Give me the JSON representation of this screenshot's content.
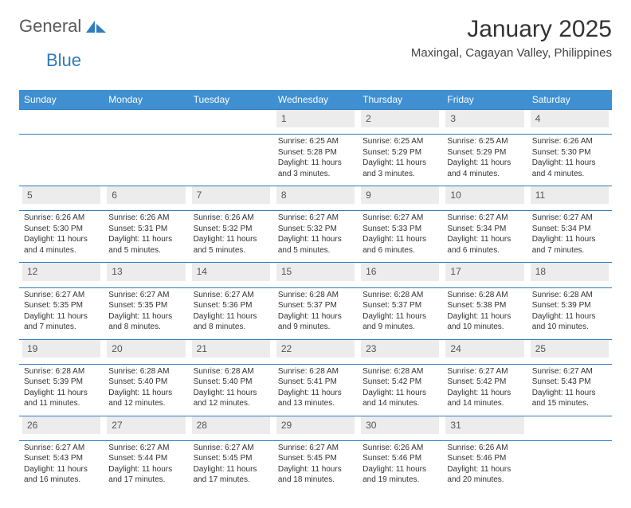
{
  "brand": {
    "word1": "General",
    "word2": "Blue"
  },
  "title": "January 2025",
  "location": "Maxingal, Cagayan Valley, Philippines",
  "colors": {
    "header_bg": "#3f8fd1",
    "border": "#2f7bbf",
    "daynum_bg": "#ececec",
    "text": "#333333",
    "logo_gray": "#5a5a5a",
    "logo_blue": "#2f7bbf"
  },
  "weekdays": [
    "Sunday",
    "Monday",
    "Tuesday",
    "Wednesday",
    "Thursday",
    "Friday",
    "Saturday"
  ],
  "weeks": [
    [
      null,
      null,
      null,
      {
        "n": "1",
        "sr": "Sunrise: 6:25 AM",
        "ss": "Sunset: 5:28 PM",
        "d1": "Daylight: 11 hours",
        "d2": "and 3 minutes."
      },
      {
        "n": "2",
        "sr": "Sunrise: 6:25 AM",
        "ss": "Sunset: 5:29 PM",
        "d1": "Daylight: 11 hours",
        "d2": "and 3 minutes."
      },
      {
        "n": "3",
        "sr": "Sunrise: 6:25 AM",
        "ss": "Sunset: 5:29 PM",
        "d1": "Daylight: 11 hours",
        "d2": "and 4 minutes."
      },
      {
        "n": "4",
        "sr": "Sunrise: 6:26 AM",
        "ss": "Sunset: 5:30 PM",
        "d1": "Daylight: 11 hours",
        "d2": "and 4 minutes."
      }
    ],
    [
      {
        "n": "5",
        "sr": "Sunrise: 6:26 AM",
        "ss": "Sunset: 5:30 PM",
        "d1": "Daylight: 11 hours",
        "d2": "and 4 minutes."
      },
      {
        "n": "6",
        "sr": "Sunrise: 6:26 AM",
        "ss": "Sunset: 5:31 PM",
        "d1": "Daylight: 11 hours",
        "d2": "and 5 minutes."
      },
      {
        "n": "7",
        "sr": "Sunrise: 6:26 AM",
        "ss": "Sunset: 5:32 PM",
        "d1": "Daylight: 11 hours",
        "d2": "and 5 minutes."
      },
      {
        "n": "8",
        "sr": "Sunrise: 6:27 AM",
        "ss": "Sunset: 5:32 PM",
        "d1": "Daylight: 11 hours",
        "d2": "and 5 minutes."
      },
      {
        "n": "9",
        "sr": "Sunrise: 6:27 AM",
        "ss": "Sunset: 5:33 PM",
        "d1": "Daylight: 11 hours",
        "d2": "and 6 minutes."
      },
      {
        "n": "10",
        "sr": "Sunrise: 6:27 AM",
        "ss": "Sunset: 5:34 PM",
        "d1": "Daylight: 11 hours",
        "d2": "and 6 minutes."
      },
      {
        "n": "11",
        "sr": "Sunrise: 6:27 AM",
        "ss": "Sunset: 5:34 PM",
        "d1": "Daylight: 11 hours",
        "d2": "and 7 minutes."
      }
    ],
    [
      {
        "n": "12",
        "sr": "Sunrise: 6:27 AM",
        "ss": "Sunset: 5:35 PM",
        "d1": "Daylight: 11 hours",
        "d2": "and 7 minutes."
      },
      {
        "n": "13",
        "sr": "Sunrise: 6:27 AM",
        "ss": "Sunset: 5:35 PM",
        "d1": "Daylight: 11 hours",
        "d2": "and 8 minutes."
      },
      {
        "n": "14",
        "sr": "Sunrise: 6:27 AM",
        "ss": "Sunset: 5:36 PM",
        "d1": "Daylight: 11 hours",
        "d2": "and 8 minutes."
      },
      {
        "n": "15",
        "sr": "Sunrise: 6:28 AM",
        "ss": "Sunset: 5:37 PM",
        "d1": "Daylight: 11 hours",
        "d2": "and 9 minutes."
      },
      {
        "n": "16",
        "sr": "Sunrise: 6:28 AM",
        "ss": "Sunset: 5:37 PM",
        "d1": "Daylight: 11 hours",
        "d2": "and 9 minutes."
      },
      {
        "n": "17",
        "sr": "Sunrise: 6:28 AM",
        "ss": "Sunset: 5:38 PM",
        "d1": "Daylight: 11 hours",
        "d2": "and 10 minutes."
      },
      {
        "n": "18",
        "sr": "Sunrise: 6:28 AM",
        "ss": "Sunset: 5:39 PM",
        "d1": "Daylight: 11 hours",
        "d2": "and 10 minutes."
      }
    ],
    [
      {
        "n": "19",
        "sr": "Sunrise: 6:28 AM",
        "ss": "Sunset: 5:39 PM",
        "d1": "Daylight: 11 hours",
        "d2": "and 11 minutes."
      },
      {
        "n": "20",
        "sr": "Sunrise: 6:28 AM",
        "ss": "Sunset: 5:40 PM",
        "d1": "Daylight: 11 hours",
        "d2": "and 12 minutes."
      },
      {
        "n": "21",
        "sr": "Sunrise: 6:28 AM",
        "ss": "Sunset: 5:40 PM",
        "d1": "Daylight: 11 hours",
        "d2": "and 12 minutes."
      },
      {
        "n": "22",
        "sr": "Sunrise: 6:28 AM",
        "ss": "Sunset: 5:41 PM",
        "d1": "Daylight: 11 hours",
        "d2": "and 13 minutes."
      },
      {
        "n": "23",
        "sr": "Sunrise: 6:28 AM",
        "ss": "Sunset: 5:42 PM",
        "d1": "Daylight: 11 hours",
        "d2": "and 14 minutes."
      },
      {
        "n": "24",
        "sr": "Sunrise: 6:27 AM",
        "ss": "Sunset: 5:42 PM",
        "d1": "Daylight: 11 hours",
        "d2": "and 14 minutes."
      },
      {
        "n": "25",
        "sr": "Sunrise: 6:27 AM",
        "ss": "Sunset: 5:43 PM",
        "d1": "Daylight: 11 hours",
        "d2": "and 15 minutes."
      }
    ],
    [
      {
        "n": "26",
        "sr": "Sunrise: 6:27 AM",
        "ss": "Sunset: 5:43 PM",
        "d1": "Daylight: 11 hours",
        "d2": "and 16 minutes."
      },
      {
        "n": "27",
        "sr": "Sunrise: 6:27 AM",
        "ss": "Sunset: 5:44 PM",
        "d1": "Daylight: 11 hours",
        "d2": "and 17 minutes."
      },
      {
        "n": "28",
        "sr": "Sunrise: 6:27 AM",
        "ss": "Sunset: 5:45 PM",
        "d1": "Daylight: 11 hours",
        "d2": "and 17 minutes."
      },
      {
        "n": "29",
        "sr": "Sunrise: 6:27 AM",
        "ss": "Sunset: 5:45 PM",
        "d1": "Daylight: 11 hours",
        "d2": "and 18 minutes."
      },
      {
        "n": "30",
        "sr": "Sunrise: 6:26 AM",
        "ss": "Sunset: 5:46 PM",
        "d1": "Daylight: 11 hours",
        "d2": "and 19 minutes."
      },
      {
        "n": "31",
        "sr": "Sunrise: 6:26 AM",
        "ss": "Sunset: 5:46 PM",
        "d1": "Daylight: 11 hours",
        "d2": "and 20 minutes."
      },
      null
    ]
  ]
}
